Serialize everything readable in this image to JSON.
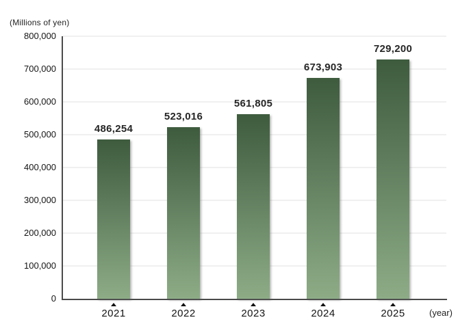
{
  "chart_data": {
    "type": "bar",
    "title": "(Millions of yen)",
    "xlabel": "(year)",
    "ylabel": "",
    "categories": [
      "2021",
      "2022",
      "2023",
      "2024",
      "2025"
    ],
    "values": [
      486254,
      523016,
      561805,
      673903,
      729200
    ],
    "value_labels": [
      "486,254",
      "523,016",
      "561,805",
      "673,903",
      "729,200"
    ],
    "ylim": [
      0,
      800000
    ],
    "ytick_step": 100000,
    "ytick_labels": [
      "0",
      "100,000",
      "200,000",
      "300,000",
      "400,000",
      "500,000",
      "600,000",
      "700,000",
      "800,000"
    ],
    "grid": "horizontal-only",
    "legend": "none",
    "colors": {
      "bar_gradient_top": "#3e5b3e",
      "bar_gradient_bottom": "#8dac86",
      "axis": "#4a4a4a",
      "gridline": "#f0f0f0",
      "text": "#1f1f1f",
      "marker": "#111111"
    }
  }
}
